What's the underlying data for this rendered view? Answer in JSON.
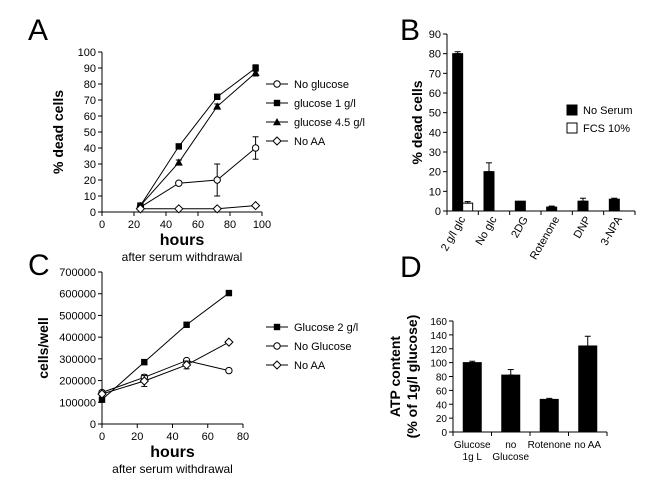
{
  "panel_labels": {
    "a": "A",
    "b": "B",
    "c": "C",
    "d": "D"
  },
  "chart_data": [
    {
      "id": "A",
      "type": "line",
      "xlabel": "hours",
      "xsublabel": "after serum withdrawal",
      "ylabel": "% dead cells",
      "xlim": [
        0,
        100
      ],
      "ylim": [
        0,
        100
      ],
      "xticks": [
        0,
        20,
        40,
        60,
        80,
        100
      ],
      "yticks": [
        0,
        10,
        20,
        30,
        40,
        50,
        60,
        70,
        80,
        90,
        100
      ],
      "series": [
        {
          "name": "No glucose",
          "marker": "circle-open",
          "x": [
            24,
            48,
            72,
            96
          ],
          "y": [
            3,
            18,
            20,
            40
          ],
          "err": [
            0,
            1,
            10,
            7
          ]
        },
        {
          "name": "glucose 1 g/l",
          "marker": "square-filled",
          "x": [
            24,
            48,
            72,
            96
          ],
          "y": [
            4,
            41,
            72,
            90
          ],
          "err": [
            0,
            1.5,
            1.5,
            2
          ]
        },
        {
          "name": "glucose 4.5 g/l",
          "marker": "triangle-filled",
          "x": [
            24,
            48,
            72,
            96
          ],
          "y": [
            4,
            31,
            66,
            87
          ],
          "err": [
            0,
            1.5,
            1.5,
            2
          ]
        },
        {
          "name": "No AA",
          "marker": "diamond-open",
          "x": [
            24,
            48,
            72,
            96
          ],
          "y": [
            2,
            2,
            2,
            4
          ],
          "err": [
            0,
            0,
            0,
            0
          ]
        }
      ]
    },
    {
      "id": "B",
      "type": "bar",
      "ylabel": "% dead cells",
      "ylim": [
        0,
        90
      ],
      "yticks": [
        0,
        10,
        20,
        30,
        40,
        50,
        60,
        70,
        80,
        90
      ],
      "categories": [
        "2 g/l glc",
        "No glc",
        "2DG",
        "Rotenone",
        "DNP",
        "3-NPA"
      ],
      "series": [
        {
          "name": "No Serum",
          "fill": "black",
          "values": [
            80,
            20,
            5,
            2,
            5,
            6
          ],
          "err": [
            1,
            4.5,
            0,
            0.5,
            1.5,
            0.5
          ]
        },
        {
          "name": "FCS 10%",
          "fill": "white",
          "values": [
            4,
            null,
            null,
            null,
            null,
            null
          ],
          "err": [
            0.8,
            null,
            null,
            null,
            null,
            null
          ]
        }
      ]
    },
    {
      "id": "C",
      "type": "line",
      "xlabel": "hours",
      "xsublabel": "after serum withdrawal",
      "ylabel": "cells/well",
      "xlim": [
        0,
        80
      ],
      "ylim": [
        0,
        700000
      ],
      "xticks": [
        0,
        20,
        40,
        60,
        80
      ],
      "yticks": [
        0,
        100000,
        200000,
        300000,
        400000,
        500000,
        600000,
        700000
      ],
      "series": [
        {
          "name": "Glucose 2 g/l",
          "marker": "square-filled",
          "x": [
            0,
            24,
            48,
            72
          ],
          "y": [
            112000,
            285000,
            457000,
            603000
          ],
          "err": [
            10000,
            12000,
            7000,
            7000
          ]
        },
        {
          "name": "No Glucose",
          "marker": "circle-open",
          "x": [
            0,
            24,
            48,
            72
          ],
          "y": [
            145000,
            215000,
            292000,
            246000
          ],
          "err": [
            8000,
            12000,
            8000,
            8000
          ]
        },
        {
          "name": "No AA",
          "marker": "diamond-open",
          "x": [
            0,
            24,
            48,
            72
          ],
          "y": [
            138000,
            198000,
            272000,
            377000
          ],
          "err": [
            6000,
            25000,
            18000,
            6000
          ]
        }
      ]
    },
    {
      "id": "D",
      "type": "bar",
      "ylabel": "ATP content",
      "ylabel2": "(% of 1g/l glucose)",
      "ylim": [
        0,
        160
      ],
      "yticks": [
        0,
        20,
        40,
        60,
        80,
        100,
        120,
        140,
        160
      ],
      "categories": [
        [
          "Glucose",
          "1g L"
        ],
        [
          "no",
          "Glucose"
        ],
        [
          "Rotenone"
        ],
        [
          "no AA"
        ]
      ],
      "series": [
        {
          "name": "ATP",
          "fill": "black",
          "values": [
            100,
            82,
            47,
            124
          ],
          "err": [
            2,
            8,
            1.5,
            14
          ]
        }
      ]
    }
  ]
}
